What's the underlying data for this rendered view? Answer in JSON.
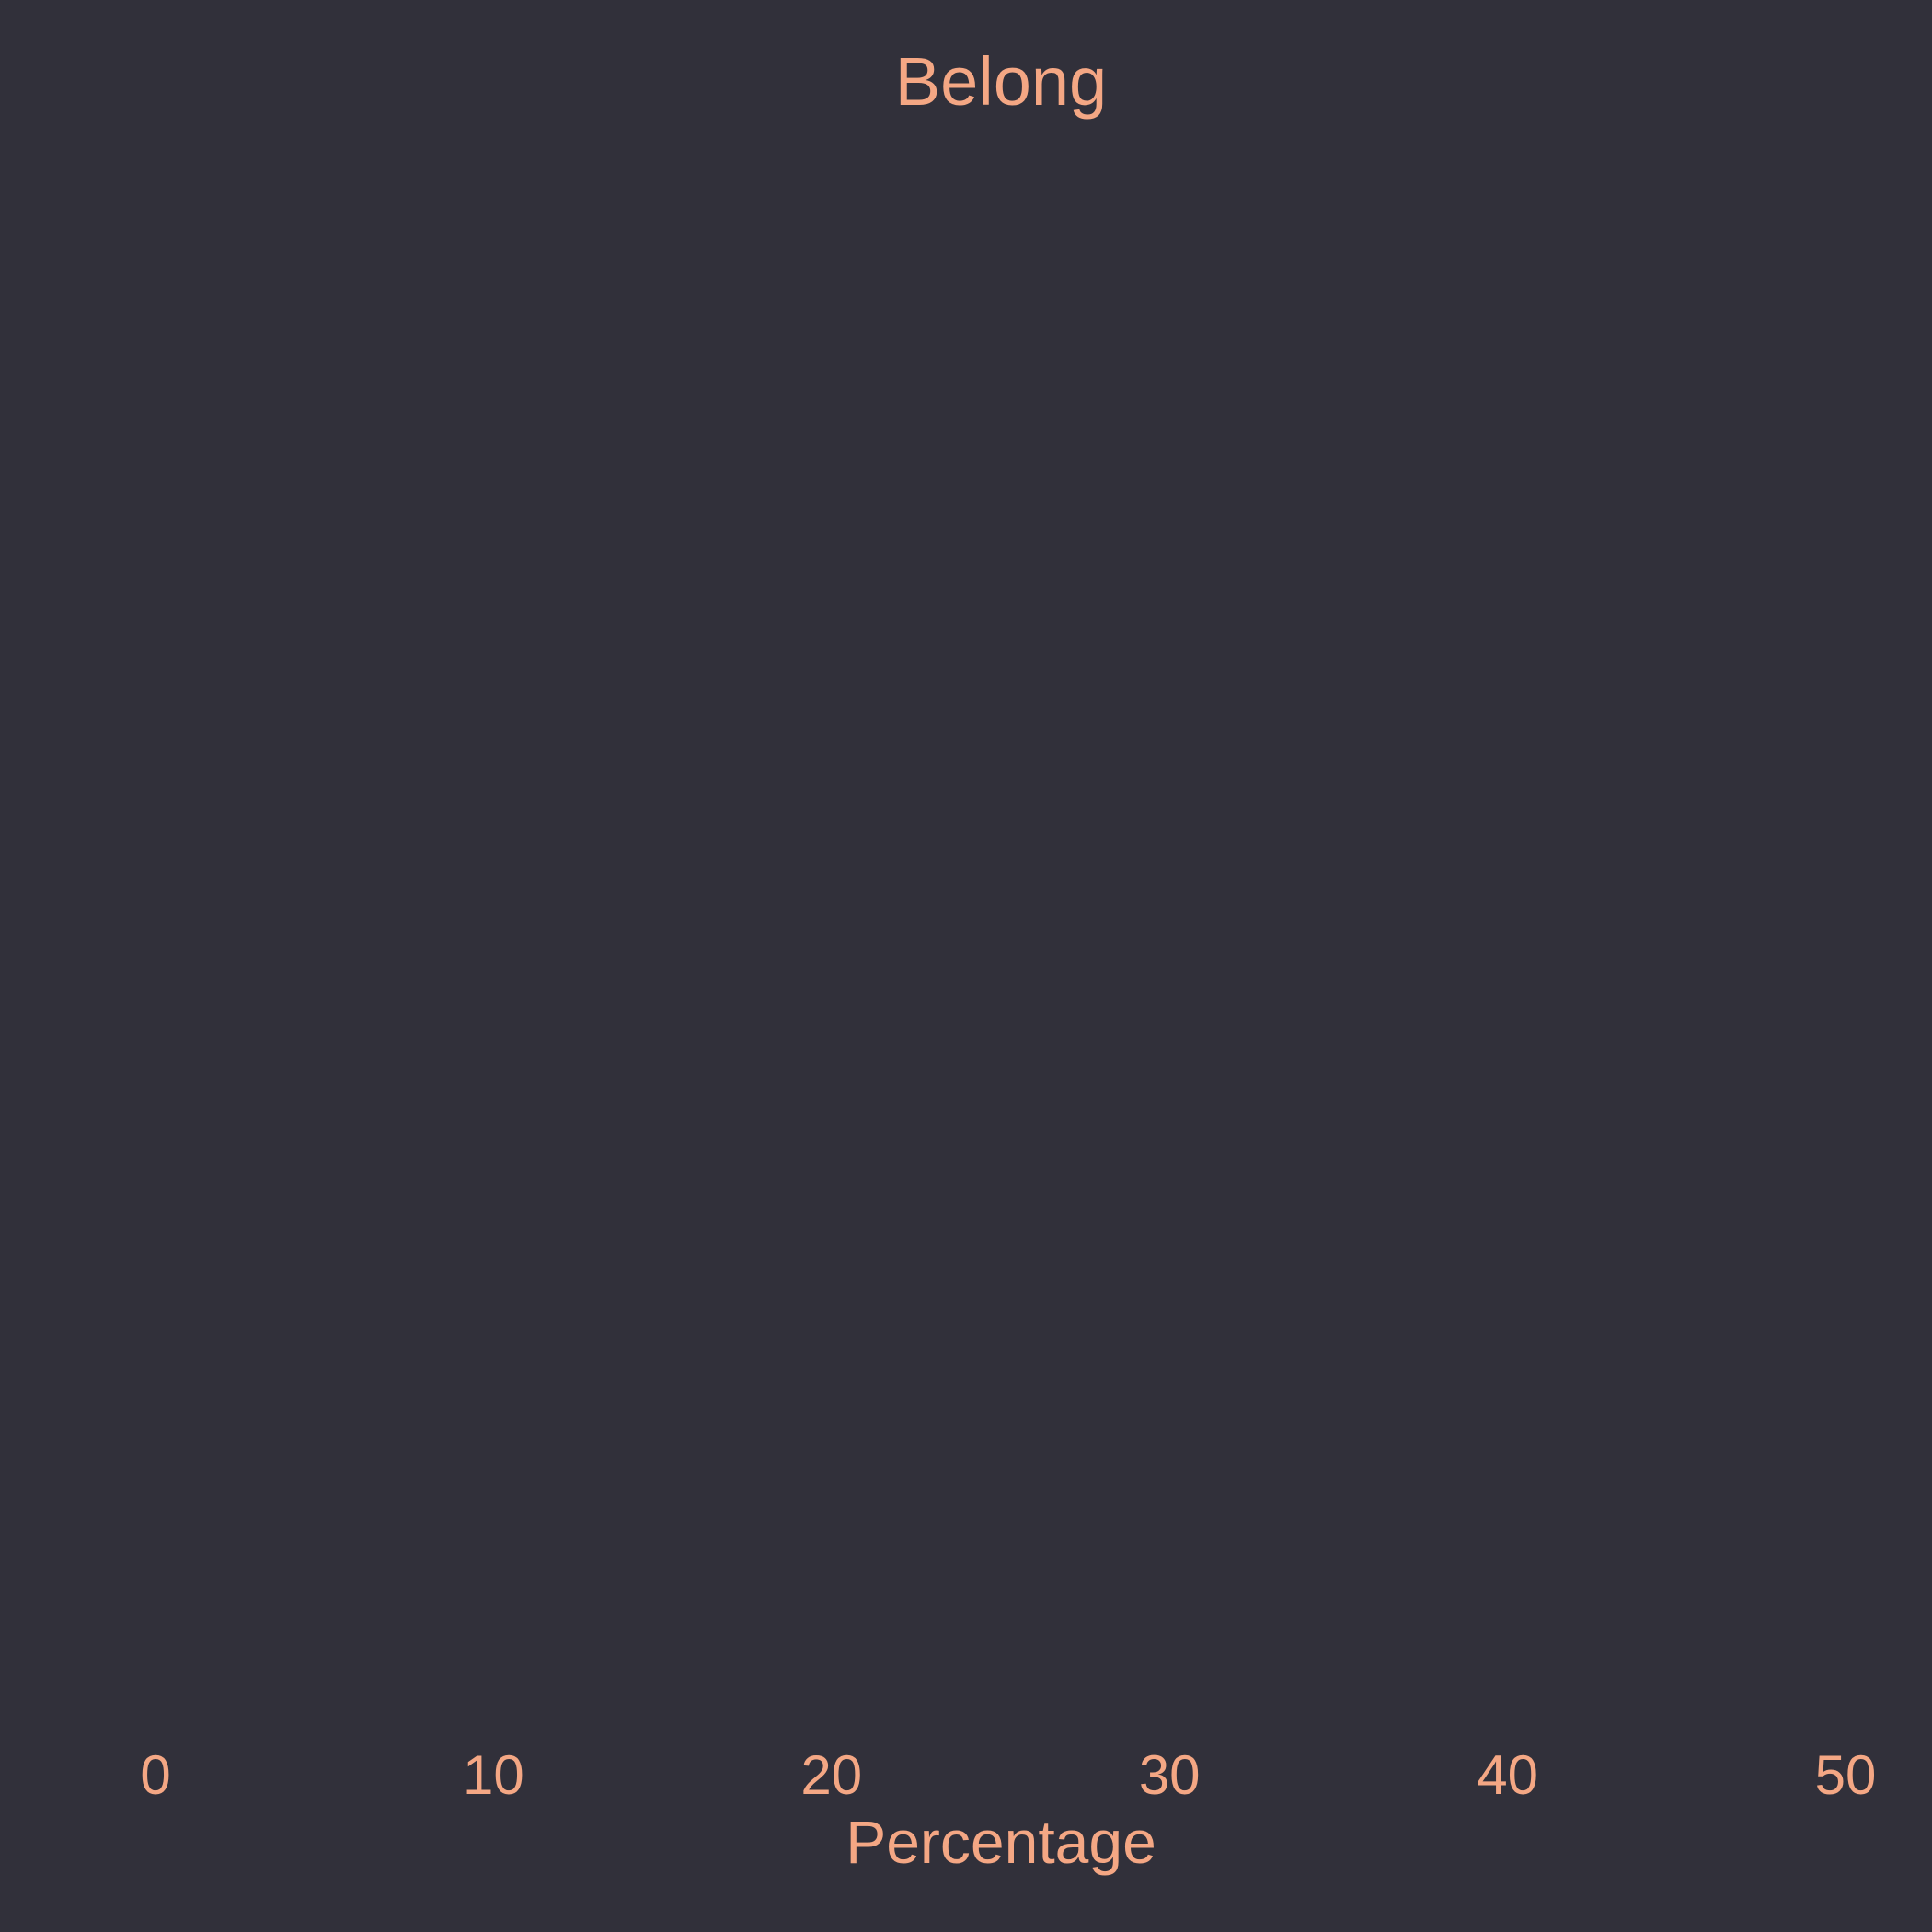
{
  "chart_data": {
    "type": "bar",
    "title": "Belong",
    "xlabel": "Percentage",
    "ylabel": "",
    "xlim": [
      0,
      50
    ],
    "x_ticks": [
      "0",
      "10",
      "20",
      "30",
      "40",
      "50"
    ],
    "categories": [],
    "values": [],
    "grid": false,
    "orientation": "horizontal",
    "colors": {
      "background": "#31303a",
      "text": "#f4a784"
    }
  }
}
